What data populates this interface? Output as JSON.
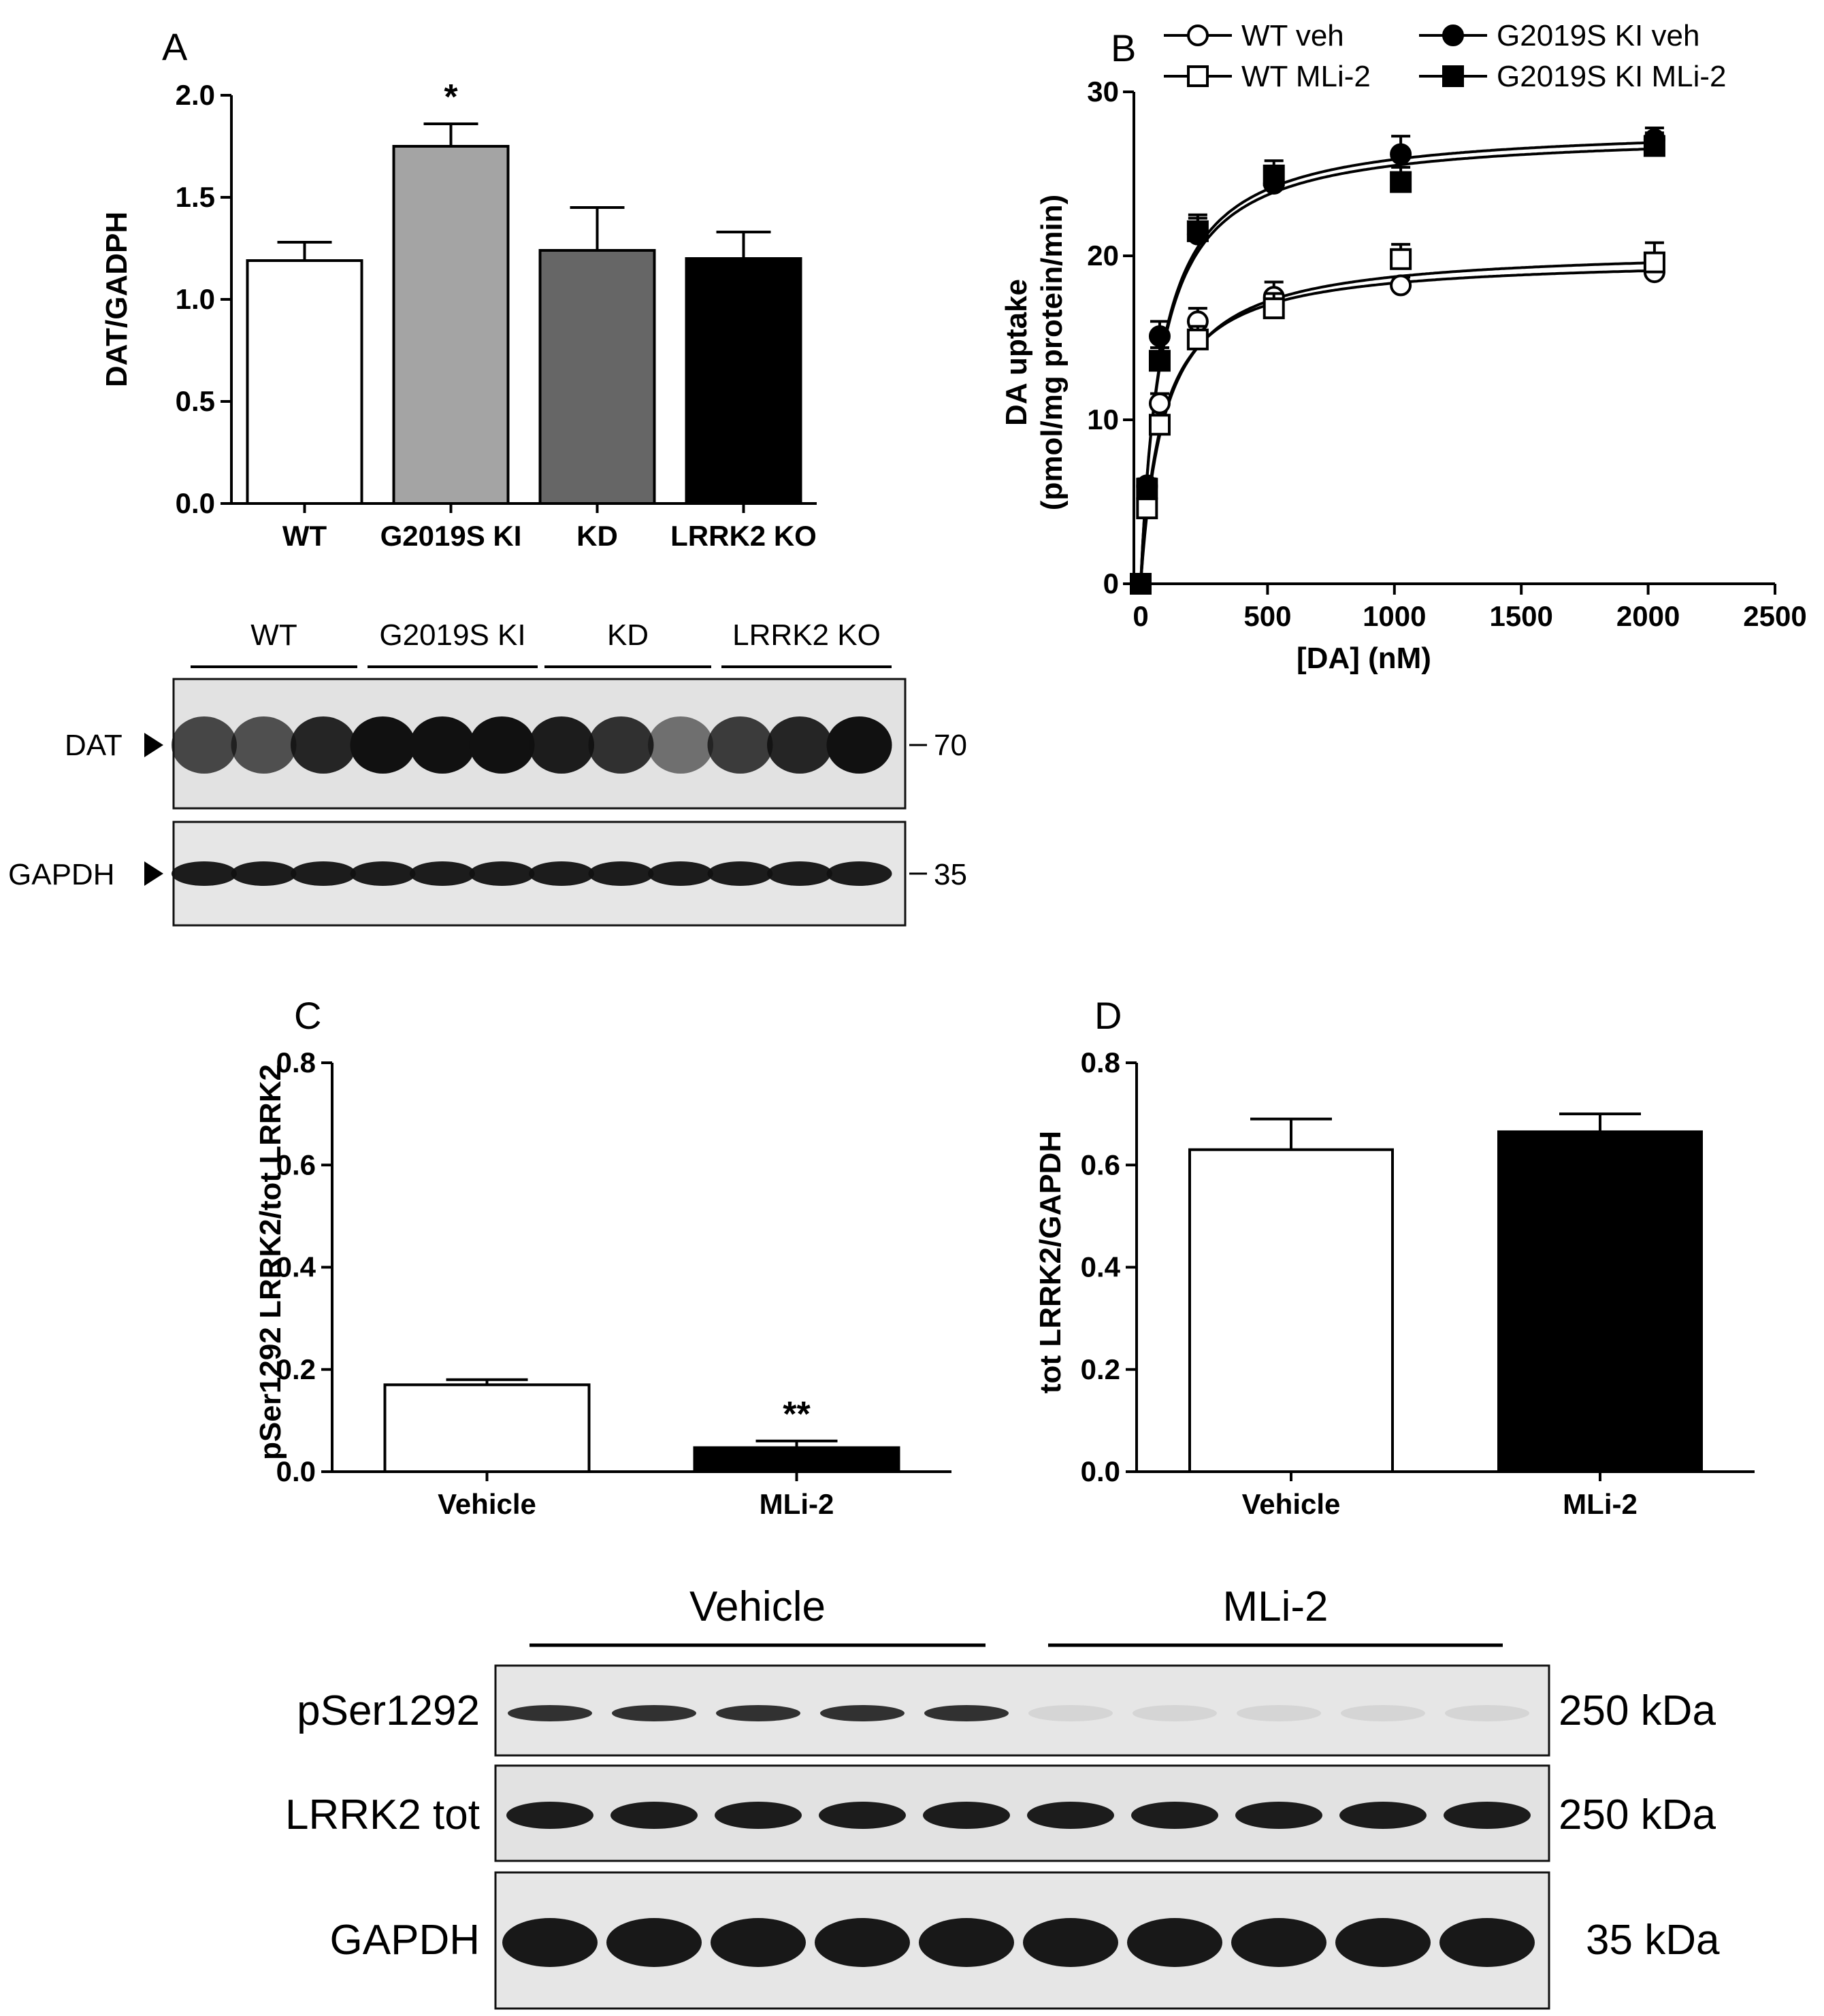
{
  "chart_data": [
    {
      "panel": "A",
      "type": "bar",
      "ylabel": "DAT/GADPH",
      "ylim": [
        0,
        2.0
      ],
      "yticks": [
        "0.0",
        "0.5",
        "1.0",
        "1.5",
        "2.0"
      ],
      "categories": [
        "WT",
        "G2019S KI",
        "KD",
        "LRRK2 KO"
      ],
      "values": [
        1.19,
        1.75,
        1.24,
        1.2
      ],
      "errors": [
        0.09,
        0.11,
        0.21,
        0.13
      ],
      "colors": [
        "#ffffff",
        "#a4a4a4",
        "#666666",
        "#000000"
      ],
      "annotations": [
        "",
        "*",
        "",
        ""
      ]
    },
    {
      "panel": "B",
      "type": "scatter",
      "xlabel": "[DA] (nM)",
      "ylabel_line1": "DA uptake",
      "ylabel_line2": "(pmol/mg protein/min)",
      "xlim": [
        0,
        2500
      ],
      "ylim": [
        0,
        30
      ],
      "xticks": [
        "0",
        "500",
        "1000",
        "1500",
        "2000",
        "2500"
      ],
      "yticks": [
        "0",
        "10",
        "20",
        "30"
      ],
      "x": [
        0,
        25,
        75,
        225,
        525,
        1025,
        2025
      ],
      "series": [
        {
          "name": "WT veh",
          "marker": "open-circle",
          "values": [
            0,
            5.9,
            11.0,
            16.0,
            17.5,
            18.2,
            19.0
          ],
          "errors": [
            0,
            0.4,
            0.6,
            0.8,
            0.9,
            0.5,
            0.5
          ]
        },
        {
          "name": "WT MLi-2",
          "marker": "open-square",
          "values": [
            0,
            4.6,
            9.7,
            14.9,
            16.8,
            19.8,
            19.6
          ],
          "errors": [
            0,
            0.4,
            0.5,
            0.8,
            0.9,
            0.9,
            1.2
          ]
        },
        {
          "name": "G2019S KI veh",
          "marker": "filled-circle",
          "values": [
            0,
            6.0,
            15.1,
            21.3,
            24.4,
            26.2,
            27.1
          ],
          "errors": [
            0,
            0.4,
            0.9,
            1.0,
            0.9,
            1.1,
            0.7
          ]
        },
        {
          "name": "G2019S KI MLi-2",
          "marker": "filled-square",
          "values": [
            0,
            5.8,
            13.6,
            21.5,
            24.9,
            24.5,
            26.7
          ],
          "errors": [
            0,
            0.4,
            0.8,
            1.0,
            0.9,
            0.9,
            0.8
          ]
        }
      ],
      "fits": [
        {
          "vmax": 19.9,
          "km": 85,
          "color": "#000000"
        },
        {
          "vmax": 20.5,
          "km": 95,
          "color": "#000000"
        },
        {
          "vmax": 28.0,
          "km": 82,
          "color": "#000000"
        },
        {
          "vmax": 27.6,
          "km": 82,
          "color": "#000000"
        }
      ]
    },
    {
      "panel": "C",
      "type": "bar",
      "ylabel": "pSer1292 LRRK2/tot LRRK2",
      "ylim": [
        0,
        0.8
      ],
      "yticks": [
        "0.0",
        "0.2",
        "0.4",
        "0.6",
        "0.8"
      ],
      "categories": [
        "Vehicle",
        "MLi-2"
      ],
      "values": [
        0.17,
        0.047
      ],
      "errors": [
        0.01,
        0.013
      ],
      "colors": [
        "#ffffff",
        "#000000"
      ],
      "annotations": [
        "",
        "**"
      ]
    },
    {
      "panel": "D",
      "type": "bar",
      "ylabel": "tot LRRK2/GAPDH",
      "ylim": [
        0,
        0.8
      ],
      "yticks": [
        "0.0",
        "0.2",
        "0.4",
        "0.6",
        "0.8"
      ],
      "categories": [
        "Vehicle",
        "MLi-2"
      ],
      "values": [
        0.63,
        0.665
      ],
      "errors": [
        0.06,
        0.035
      ],
      "colors": [
        "#ffffff",
        "#000000"
      ],
      "annotations": [
        "",
        ""
      ]
    }
  ],
  "blots": {
    "A": {
      "groups": [
        "WT",
        "G2019S KI",
        "KD",
        "LRRK2 KO"
      ],
      "rows": [
        {
          "label": "DAT",
          "marker": "70"
        },
        {
          "label": "GAPDH",
          "marker": "35"
        }
      ]
    },
    "bottom": {
      "groups": [
        "Vehicle",
        "MLi-2"
      ],
      "rows": [
        {
          "label": "pSer1292",
          "marker": "250 kDa"
        },
        {
          "label": "LRRK2 tot",
          "marker": "250 kDa"
        },
        {
          "label": "GAPDH",
          "marker": "35 kDa"
        }
      ]
    }
  },
  "colors": {
    "axis": "#000000",
    "gel_background": "#e4e4e4",
    "band": "#141414"
  }
}
